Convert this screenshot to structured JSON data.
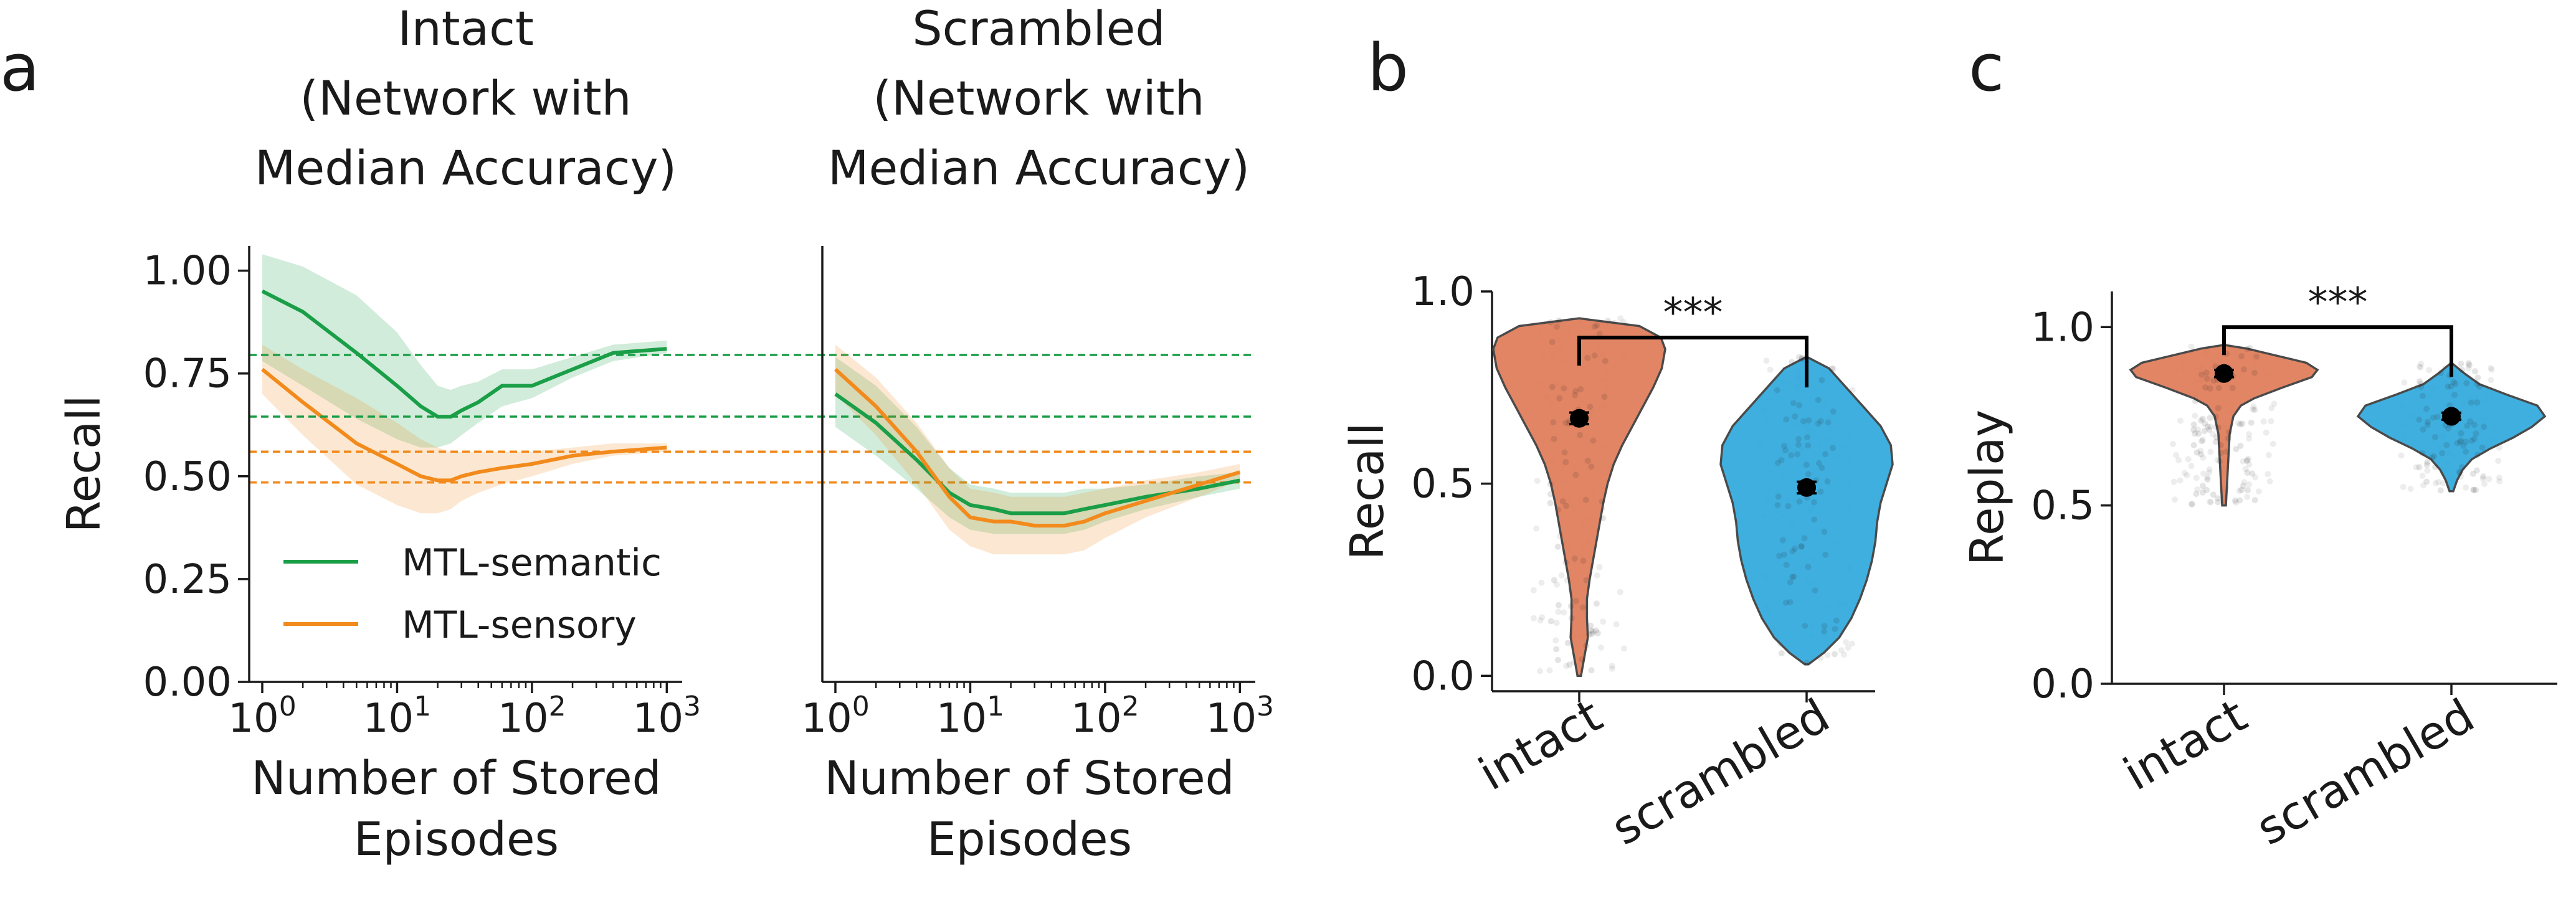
{
  "panels": {
    "a": "a",
    "b": "b",
    "c": "c"
  },
  "colors": {
    "semantic": "#1a9e47",
    "sensory": "#f28a1c",
    "intact": "#e07b57",
    "scrambled": "#2fa8dc",
    "axis": "#1a1a1a",
    "point": "#000000"
  },
  "chart_data": [
    {
      "id": "a-intact",
      "type": "line",
      "title": [
        "Intact",
        "(Network with",
        "Median Accuracy)"
      ],
      "xlabel": [
        "Number of Stored",
        "Episodes"
      ],
      "ylabel": "Recall",
      "xscale": "log",
      "xlim": [
        0.8,
        1300
      ],
      "ylim": [
        0.0,
        1.06
      ],
      "xticks": [
        1,
        10,
        100,
        1000
      ],
      "xtick_labels": [
        [
          "10",
          "0"
        ],
        [
          "10",
          "1"
        ],
        [
          "10",
          "2"
        ],
        [
          "10",
          "3"
        ]
      ],
      "yticks": [
        0.0,
        0.25,
        0.5,
        0.75,
        1.0
      ],
      "ytick_labels": [
        "0.00",
        "0.25",
        "0.50",
        "0.75",
        "1.00"
      ],
      "x": [
        1,
        2,
        5,
        10,
        15,
        20,
        25,
        30,
        40,
        60,
        100,
        200,
        400,
        1000
      ],
      "series": [
        {
          "name": "MTL-semantic",
          "color_key": "semantic",
          "values": [
            0.95,
            0.9,
            0.8,
            0.72,
            0.67,
            0.645,
            0.645,
            0.66,
            0.68,
            0.72,
            0.72,
            0.76,
            0.8,
            0.81
          ],
          "lower": [
            0.78,
            0.72,
            0.64,
            0.59,
            0.57,
            0.57,
            0.58,
            0.6,
            0.63,
            0.67,
            0.69,
            0.74,
            0.78,
            0.8
          ],
          "upper": [
            1.04,
            1.01,
            0.94,
            0.85,
            0.77,
            0.72,
            0.71,
            0.72,
            0.73,
            0.76,
            0.76,
            0.79,
            0.82,
            0.83
          ]
        },
        {
          "name": "MTL-sensory",
          "color_key": "sensory",
          "values": [
            0.76,
            0.68,
            0.58,
            0.53,
            0.5,
            0.49,
            0.49,
            0.5,
            0.51,
            0.52,
            0.53,
            0.55,
            0.56,
            0.57
          ],
          "lower": [
            0.7,
            0.6,
            0.48,
            0.43,
            0.41,
            0.41,
            0.42,
            0.44,
            0.46,
            0.48,
            0.5,
            0.53,
            0.55,
            0.56
          ],
          "upper": [
            0.82,
            0.76,
            0.69,
            0.63,
            0.59,
            0.57,
            0.56,
            0.56,
            0.56,
            0.56,
            0.56,
            0.57,
            0.58,
            0.58
          ]
        }
      ],
      "reference_lines": [
        {
          "y": 0.795,
          "color_key": "semantic"
        },
        {
          "y": 0.645,
          "color_key": "semantic"
        },
        {
          "y": 0.56,
          "color_key": "sensory"
        },
        {
          "y": 0.485,
          "color_key": "sensory"
        }
      ],
      "legend": {
        "position": "lower-left"
      }
    },
    {
      "id": "a-scrambled",
      "type": "line",
      "title": [
        "Scrambled",
        "(Network with",
        "Median Accuracy)"
      ],
      "xlabel": [
        "Number of Stored",
        "Episodes"
      ],
      "xscale": "log",
      "xlim": [
        0.8,
        1300
      ],
      "ylim": [
        0.0,
        1.06
      ],
      "xticks": [
        1,
        10,
        100,
        1000
      ],
      "xtick_labels": [
        [
          "10",
          "0"
        ],
        [
          "10",
          "1"
        ],
        [
          "10",
          "2"
        ],
        [
          "10",
          "3"
        ]
      ],
      "x": [
        1,
        2,
        4,
        7,
        10,
        15,
        20,
        30,
        50,
        70,
        100,
        200,
        500,
        1000
      ],
      "series": [
        {
          "name": "MTL-semantic",
          "color_key": "semantic",
          "values": [
            0.7,
            0.63,
            0.54,
            0.46,
            0.43,
            0.42,
            0.41,
            0.41,
            0.41,
            0.42,
            0.43,
            0.45,
            0.47,
            0.49
          ],
          "lower": [
            0.62,
            0.55,
            0.47,
            0.4,
            0.37,
            0.36,
            0.36,
            0.36,
            0.36,
            0.37,
            0.39,
            0.42,
            0.45,
            0.47
          ],
          "upper": [
            0.79,
            0.72,
            0.62,
            0.52,
            0.48,
            0.47,
            0.46,
            0.46,
            0.46,
            0.47,
            0.47,
            0.48,
            0.5,
            0.51
          ]
        },
        {
          "name": "MTL-sensory",
          "color_key": "sensory",
          "values": [
            0.76,
            0.67,
            0.56,
            0.45,
            0.4,
            0.39,
            0.39,
            0.38,
            0.38,
            0.39,
            0.41,
            0.44,
            0.48,
            0.51
          ],
          "lower": [
            0.7,
            0.6,
            0.48,
            0.37,
            0.33,
            0.31,
            0.31,
            0.31,
            0.31,
            0.32,
            0.35,
            0.4,
            0.45,
            0.49
          ],
          "upper": [
            0.82,
            0.74,
            0.63,
            0.52,
            0.47,
            0.46,
            0.45,
            0.45,
            0.45,
            0.46,
            0.47,
            0.49,
            0.51,
            0.53
          ]
        }
      ],
      "reference_lines": [
        {
          "y": 0.795,
          "color_key": "semantic"
        },
        {
          "y": 0.645,
          "color_key": "semantic"
        },
        {
          "y": 0.56,
          "color_key": "sensory"
        },
        {
          "y": 0.485,
          "color_key": "sensory"
        }
      ]
    },
    {
      "id": "b",
      "type": "violin",
      "ylabel": "Recall",
      "ylim": [
        -0.04,
        1.0
      ],
      "yticks": [
        0.0,
        0.5,
        1.0
      ],
      "ytick_labels": [
        "0.0",
        "0.5",
        "1.0"
      ],
      "categories": [
        "intact",
        "scrambled"
      ],
      "groups": [
        {
          "category": "intact",
          "color_key": "intact",
          "mean": 0.67,
          "sem": 0.015,
          "range": [
            0.0,
            0.93
          ],
          "density": [
            [
              0.0,
              0.02
            ],
            [
              0.05,
              0.06
            ],
            [
              0.1,
              0.1
            ],
            [
              0.15,
              0.09
            ],
            [
              0.2,
              0.09
            ],
            [
              0.25,
              0.12
            ],
            [
              0.3,
              0.16
            ],
            [
              0.35,
              0.2
            ],
            [
              0.4,
              0.24
            ],
            [
              0.45,
              0.28
            ],
            [
              0.5,
              0.33
            ],
            [
              0.55,
              0.4
            ],
            [
              0.6,
              0.5
            ],
            [
              0.65,
              0.62
            ],
            [
              0.7,
              0.74
            ],
            [
              0.75,
              0.86
            ],
            [
              0.8,
              0.96
            ],
            [
              0.85,
              1.0
            ],
            [
              0.88,
              0.95
            ],
            [
              0.91,
              0.7
            ],
            [
              0.93,
              0.0
            ]
          ]
        },
        {
          "category": "scrambled",
          "color_key": "scrambled",
          "mean": 0.49,
          "sem": 0.015,
          "range": [
            0.03,
            0.83
          ],
          "density": [
            [
              0.03,
              0.02
            ],
            [
              0.06,
              0.2
            ],
            [
              0.1,
              0.38
            ],
            [
              0.15,
              0.52
            ],
            [
              0.2,
              0.62
            ],
            [
              0.25,
              0.7
            ],
            [
              0.3,
              0.76
            ],
            [
              0.35,
              0.8
            ],
            [
              0.4,
              0.82
            ],
            [
              0.45,
              0.86
            ],
            [
              0.5,
              0.93
            ],
            [
              0.55,
              1.0
            ],
            [
              0.6,
              0.98
            ],
            [
              0.65,
              0.86
            ],
            [
              0.7,
              0.66
            ],
            [
              0.75,
              0.46
            ],
            [
              0.8,
              0.26
            ],
            [
              0.83,
              0.0
            ]
          ]
        }
      ],
      "significance": {
        "label": "***",
        "y": 0.88
      }
    },
    {
      "id": "c",
      "type": "violin",
      "ylabel": "Replay",
      "ylim": [
        0.0,
        1.1
      ],
      "yticks": [
        0.0,
        0.5,
        1.0
      ],
      "ytick_labels": [
        "0.0",
        "0.5",
        "1.0"
      ],
      "categories": [
        "intact",
        "scrambled"
      ],
      "groups": [
        {
          "category": "intact",
          "color_key": "intact",
          "mean": 0.87,
          "sem": 0.01,
          "range": [
            0.5,
            0.95
          ],
          "density": [
            [
              0.5,
              0.02
            ],
            [
              0.55,
              0.03
            ],
            [
              0.6,
              0.04
            ],
            [
              0.65,
              0.05
            ],
            [
              0.7,
              0.06
            ],
            [
              0.75,
              0.1
            ],
            [
              0.78,
              0.18
            ],
            [
              0.8,
              0.32
            ],
            [
              0.83,
              0.62
            ],
            [
              0.86,
              0.94
            ],
            [
              0.88,
              1.0
            ],
            [
              0.9,
              0.88
            ],
            [
              0.92,
              0.56
            ],
            [
              0.94,
              0.24
            ],
            [
              0.95,
              0.0
            ]
          ]
        },
        {
          "category": "scrambled",
          "color_key": "scrambled",
          "mean": 0.75,
          "sem": 0.01,
          "range": [
            0.54,
            0.9
          ],
          "density": [
            [
              0.54,
              0.02
            ],
            [
              0.57,
              0.06
            ],
            [
              0.6,
              0.12
            ],
            [
              0.63,
              0.22
            ],
            [
              0.66,
              0.42
            ],
            [
              0.69,
              0.66
            ],
            [
              0.72,
              0.86
            ],
            [
              0.75,
              1.0
            ],
            [
              0.78,
              0.92
            ],
            [
              0.81,
              0.6
            ],
            [
              0.84,
              0.3
            ],
            [
              0.87,
              0.14
            ],
            [
              0.9,
              0.0
            ]
          ]
        }
      ],
      "significance": {
        "label": "***",
        "y": 1.0
      }
    }
  ]
}
